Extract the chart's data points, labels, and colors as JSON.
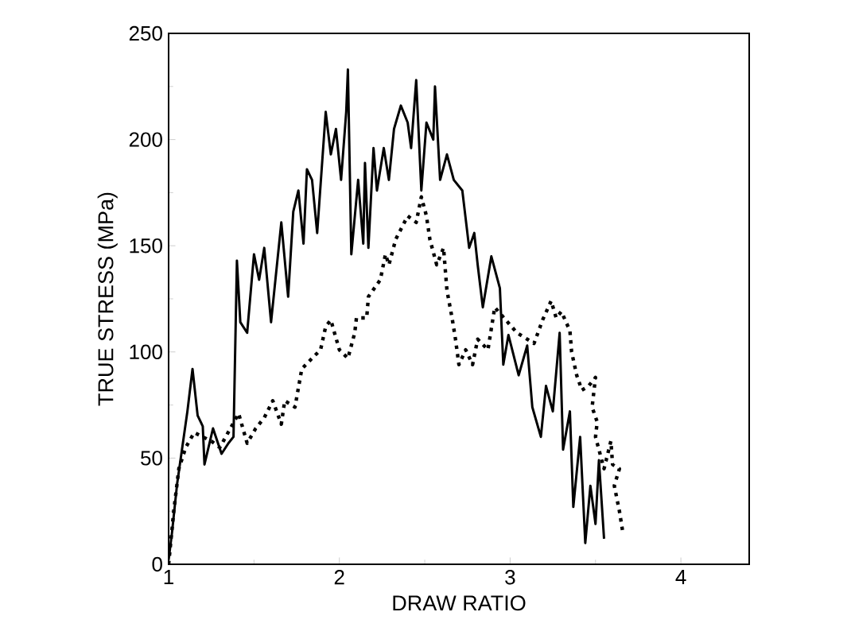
{
  "chart_data": {
    "type": "line",
    "xlabel": "DRAW RATIO",
    "ylabel": "TRUE STRESS (MPa)",
    "xlim": [
      1,
      4.4
    ],
    "ylim": [
      0,
      250
    ],
    "xticks": [
      1,
      2,
      3,
      4
    ],
    "yticks": [
      0,
      50,
      100,
      150,
      200,
      250
    ],
    "grid": false,
    "marker": "none",
    "series": [
      {
        "color": "#000000",
        "line_style": "solid",
        "x": [
          1.0,
          1.02,
          1.05,
          1.08,
          1.11,
          1.14,
          1.17,
          1.2,
          1.21,
          1.26,
          1.31,
          1.35,
          1.38,
          1.4,
          1.42,
          1.46,
          1.5,
          1.53,
          1.56,
          1.6,
          1.66,
          1.7,
          1.73,
          1.76,
          1.79,
          1.81,
          1.84,
          1.87,
          1.92,
          1.95,
          1.98,
          2.01,
          2.04,
          2.05,
          2.07,
          2.11,
          2.14,
          2.15,
          2.17,
          2.2,
          2.22,
          2.26,
          2.29,
          2.32,
          2.36,
          2.4,
          2.42,
          2.45,
          2.48,
          2.51,
          2.55,
          2.56,
          2.59,
          2.63,
          2.67,
          2.72,
          2.76,
          2.79,
          2.81,
          2.84,
          2.89,
          2.94,
          2.96,
          2.99,
          3.05,
          3.1,
          3.13,
          3.18,
          3.21,
          3.25,
          3.29,
          3.31,
          3.35,
          3.37,
          3.41,
          3.44,
          3.47,
          3.5,
          3.52,
          3.55
        ],
        "values": [
          2,
          15,
          38,
          55,
          72,
          92,
          70,
          65,
          47,
          64,
          52,
          57,
          60,
          143,
          114,
          109,
          146,
          134,
          149,
          114,
          161,
          126,
          166,
          176,
          151,
          186,
          181,
          156,
          213,
          193,
          205,
          181,
          213,
          233,
          146,
          181,
          151,
          189,
          149,
          196,
          176,
          196,
          181,
          205,
          216,
          208,
          196,
          228,
          176,
          208,
          200,
          225,
          181,
          193,
          181,
          176,
          149,
          156,
          141,
          121,
          145,
          130,
          94,
          108,
          89,
          103,
          74,
          60,
          84,
          72,
          109,
          54,
          72,
          27,
          60,
          10,
          37,
          19,
          49,
          12
        ]
      },
      {
        "color": "#000000",
        "line_style": "dotted",
        "x": [
          1.0,
          1.03,
          1.06,
          1.1,
          1.15,
          1.2,
          1.25,
          1.3,
          1.41,
          1.46,
          1.51,
          1.56,
          1.61,
          1.66,
          1.68,
          1.74,
          1.78,
          1.84,
          1.89,
          1.92,
          1.95,
          2.0,
          2.05,
          2.09,
          2.1,
          2.16,
          2.17,
          2.24,
          2.27,
          2.29,
          2.33,
          2.4,
          2.45,
          2.48,
          2.51,
          2.53,
          2.57,
          2.61,
          2.63,
          2.66,
          2.68,
          2.7,
          2.74,
          2.78,
          2.81,
          2.87,
          2.9,
          2.91,
          3.04,
          3.14,
          3.19,
          3.24,
          3.27,
          3.3,
          3.35,
          3.36,
          3.39,
          3.42,
          3.46,
          3.5,
          3.48,
          3.51,
          3.5,
          3.52,
          3.55,
          3.59,
          3.6,
          3.64,
          3.61,
          3.64,
          3.66
        ],
        "values": [
          0,
          25,
          45,
          55,
          62,
          60,
          58,
          55,
          71,
          57,
          64,
          69,
          77,
          66,
          77,
          74,
          92,
          97,
          101,
          112,
          115,
          101,
          97,
          109,
          116,
          116,
          126,
          134,
          146,
          141,
          153,
          164,
          161,
          173,
          164,
          153,
          141,
          149,
          129,
          116,
          106,
          94,
          101,
          94,
          106,
          101,
          116,
          121,
          109,
          104,
          115,
          124,
          116,
          119,
          110,
          100,
          89,
          82,
          84,
          88,
          74,
          67,
          60,
          54,
          45,
          58,
          47,
          45,
          37,
          25,
          15
        ]
      }
    ]
  }
}
